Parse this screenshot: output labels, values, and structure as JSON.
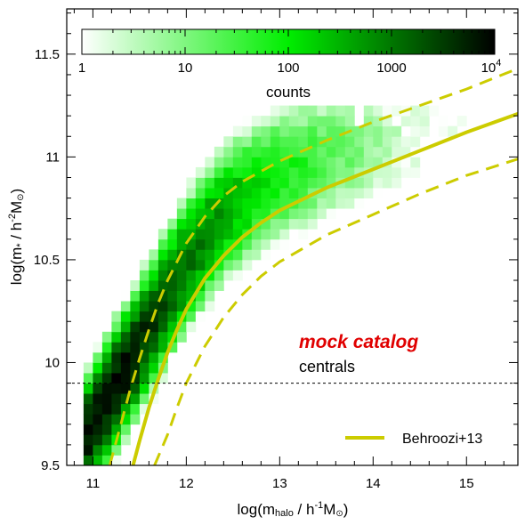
{
  "chart_data": {
    "type": "heatmap",
    "xlabel": {
      "prefix": "log(m",
      "sub": "halo",
      "mid": " / h",
      "sup": "-1",
      "unit": "M",
      "unit_sub": "⊙",
      "suffix": ")"
    },
    "ylabel": {
      "prefix": "log(m",
      "sub": "*",
      "mid": " / h",
      "sup": "-2",
      "unit": "M",
      "unit_sub": "⊙",
      "suffix": ")"
    },
    "xlim": [
      10.72,
      15.55
    ],
    "ylim": [
      9.5,
      11.72
    ],
    "x_ticks": [
      11,
      12,
      13,
      14,
      15
    ],
    "x_tick_labels": [
      "11",
      "12",
      "13",
      "14",
      "15"
    ],
    "y_ticks": [
      9.5,
      10.0,
      10.5,
      11.0,
      11.5
    ],
    "y_tick_labels": [
      "9.5",
      "10",
      "10.5",
      "11",
      "11.5"
    ],
    "colorbar": {
      "title": "counts",
      "scale": "log",
      "range": [
        1,
        10000
      ],
      "tick_labels": [
        "1",
        "10",
        "100",
        "1000"
      ],
      "last_tick_base": "10",
      "last_tick_exp": "4",
      "colors": [
        "#ffffff",
        "#00ee00",
        "#000000"
      ]
    },
    "heatmap": {
      "description_of_density": "2D histogram of central galaxies; counts estimated",
      "bin_width_x": 0.1,
      "bin_width_y": 0.05,
      "ridge_points": [
        [
          10.9,
          9.62
        ],
        [
          11.2,
          9.85
        ],
        [
          11.5,
          10.08
        ],
        [
          11.8,
          10.32
        ],
        [
          12.1,
          10.55
        ],
        [
          12.4,
          10.72
        ],
        [
          12.7,
          10.83
        ],
        [
          13.0,
          10.92
        ],
        [
          13.5,
          11.0
        ],
        [
          14.0,
          11.05
        ]
      ],
      "peak_count": 8000
    },
    "series": [
      {
        "name": "Behroozi+13",
        "style": "solid",
        "color": "#cccc00",
        "x": [
          11.43,
          11.5,
          11.6,
          11.7,
          11.8,
          11.9,
          12.0,
          12.2,
          12.4,
          12.6,
          12.8,
          13.0,
          13.5,
          14.0,
          14.5,
          15.0,
          15.55
        ],
        "y": [
          9.5,
          9.62,
          9.78,
          9.92,
          10.05,
          10.16,
          10.26,
          10.41,
          10.52,
          10.61,
          10.68,
          10.74,
          10.85,
          10.94,
          11.03,
          11.12,
          11.21
        ]
      },
      {
        "name": "",
        "style": "dashed",
        "color": "#cccc00",
        "x": [
          11.18,
          11.3,
          11.4,
          11.5,
          11.6,
          11.7,
          11.8,
          12.0,
          12.2,
          12.4,
          12.6,
          12.8,
          13.0,
          13.5,
          14.0,
          14.5,
          15.0,
          15.55
        ],
        "y": [
          9.5,
          9.7,
          9.87,
          10.02,
          10.16,
          10.29,
          10.4,
          10.58,
          10.71,
          10.81,
          10.88,
          10.93,
          10.98,
          11.08,
          11.17,
          11.25,
          11.33,
          11.43
        ]
      },
      {
        "name": "",
        "style": "dashed",
        "color": "#cccc00",
        "x": [
          11.66,
          11.8,
          11.9,
          12.0,
          12.2,
          12.4,
          12.6,
          12.8,
          13.0,
          13.5,
          14.0,
          14.5,
          15.0,
          15.55
        ],
        "y": [
          9.5,
          9.65,
          9.78,
          9.9,
          10.08,
          10.22,
          10.33,
          10.42,
          10.49,
          10.62,
          10.72,
          10.82,
          10.91,
          10.99
        ]
      },
      {
        "name": "",
        "style": "dotted",
        "color": "#000000",
        "x": [
          10.72,
          15.55
        ],
        "y": [
          9.9,
          9.9
        ]
      }
    ],
    "annotations": {
      "label_red": "mock catalog",
      "label_black": "centrals"
    },
    "legend": {
      "placement": "bottom-right",
      "entries": [
        "Behroozi+13"
      ]
    },
    "grid": false
  }
}
